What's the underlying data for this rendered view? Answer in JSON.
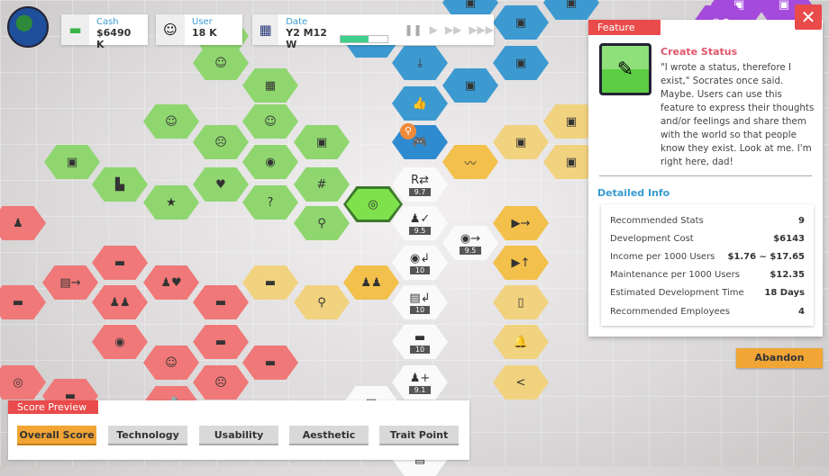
{
  "topbar": {
    "cash": {
      "label": "Cash",
      "value": "$6490 K",
      "icon": "cash-icon"
    },
    "user": {
      "label": "User",
      "value": "18 K",
      "icon": "user-avatar-icon"
    },
    "date": {
      "label": "Date",
      "value": "Y2 M12 W",
      "icon": "calendar-icon",
      "week_progress_percent": 60
    },
    "speed_controls": [
      "pause",
      "play",
      "fast",
      "fastest"
    ]
  },
  "feature_panel": {
    "tab": "Feature",
    "close_label": "✕",
    "icon": "pencil-icon",
    "icon_color": "#5ccd44",
    "title": "Create Status",
    "description": "\"I wrote a status, therefore I exist,\" Socrates once said. Maybe. Users can use this feature to express their thoughts and/or feelings and share them with the world so that people know they exist. Look at me. I'm right here, dad!",
    "detail_title": "Detailed Info",
    "details": [
      {
        "label": "Recommended Stats",
        "value": "9"
      },
      {
        "label": "Development Cost",
        "value": "$6143"
      },
      {
        "label": "Income per 1000 Users",
        "value": "$1.76 ~ $17.65"
      },
      {
        "label": "Maintenance per 1000 Users",
        "value": "$12.35"
      },
      {
        "label": "Estimated Development Time",
        "value": "18 Days"
      },
      {
        "label": "Recommended Employees",
        "value": "4"
      }
    ],
    "abandon_label": "Abandon"
  },
  "score_preview": {
    "title": "Score Preview",
    "tabs": [
      "Overall Score",
      "Technology",
      "Usability",
      "Aesthetic",
      "Trait Point"
    ],
    "active": "Overall Score"
  },
  "feature_tree": {
    "colors": {
      "green": "#8fd66f",
      "blue": "#3d9ad1",
      "yellow": "#f2c04b",
      "white": "#fafafa",
      "red": "#f07878",
      "purple": "#a54bdc"
    },
    "scores": [
      "9.7",
      "9.5",
      "9.5",
      "10",
      "10",
      "10",
      "9.1"
    ]
  }
}
